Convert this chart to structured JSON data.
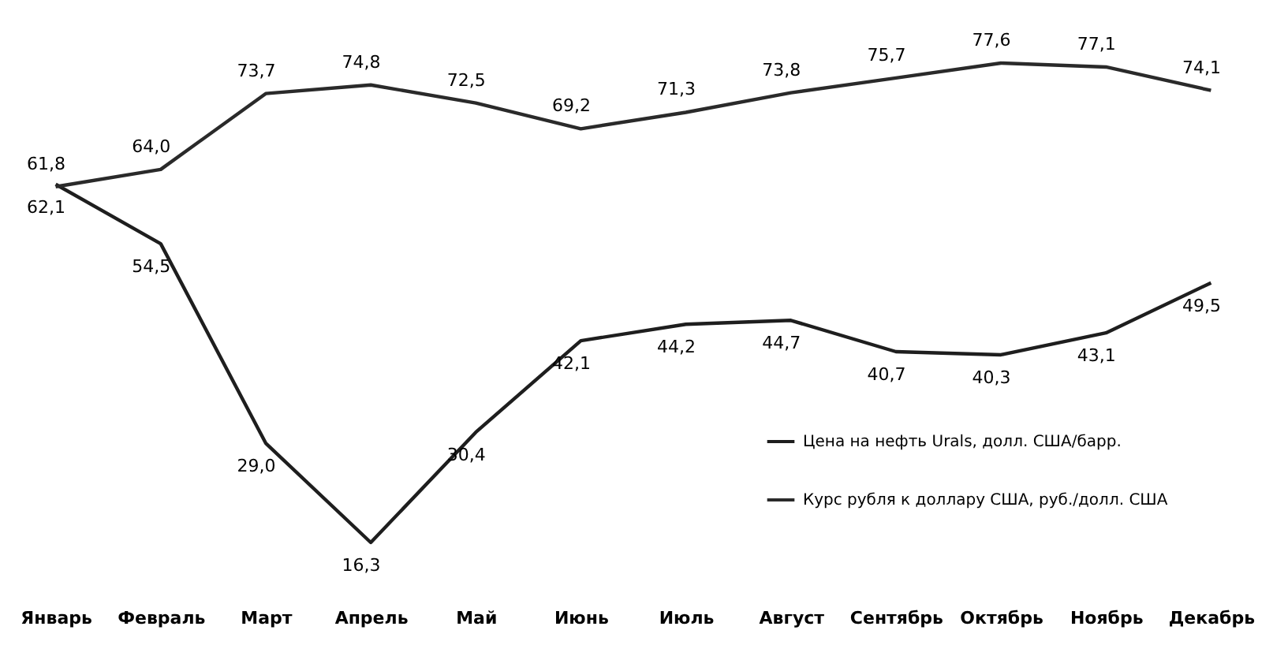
{
  "chart_data": {
    "type": "line",
    "categories": [
      "Январь",
      "Февраль",
      "Март",
      "Апрель",
      "Май",
      "Июнь",
      "Июль",
      "Август",
      "Сентябрь",
      "Октябрь",
      "Ноябрь",
      "Декабрь"
    ],
    "series": [
      {
        "name": "Цена на нефть Urals, долл. США/барр.",
        "color": "#1e1e1e",
        "values": [
          62.1,
          54.5,
          29.0,
          16.3,
          30.4,
          42.1,
          44.2,
          44.7,
          40.7,
          40.3,
          43.1,
          49.5
        ],
        "value_labels": [
          "62,1",
          "54,5",
          "29,0",
          "16,3",
          "30,4",
          "42,1",
          "44,2",
          "44,7",
          "40,7",
          "40,3",
          "43,1",
          "49,5"
        ]
      },
      {
        "name": "Курс рубля к доллару США, руб./долл. США",
        "color": "#2a2a2a",
        "values": [
          61.8,
          64.0,
          73.7,
          74.8,
          72.5,
          69.2,
          71.3,
          73.8,
          75.7,
          77.6,
          77.1,
          74.1
        ],
        "value_labels": [
          "61,8",
          "64,0",
          "73,7",
          "74,8",
          "72,5",
          "69,2",
          "71,3",
          "73,8",
          "75,7",
          "77,6",
          "77,1",
          "74,1"
        ]
      }
    ],
    "legend": "bottom right",
    "grid": false,
    "marker": "none",
    "line_style": "solid"
  }
}
